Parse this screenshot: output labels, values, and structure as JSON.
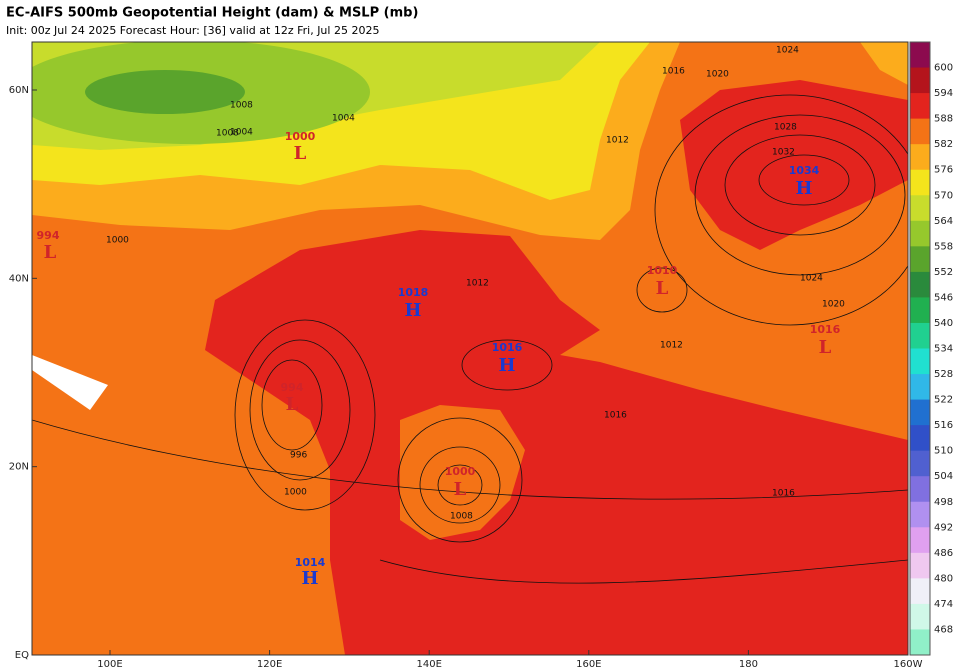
{
  "header": {
    "title": "EC-AIFS 500mb Geopotential Height (dam) & MSLP (mb)",
    "subtitle": "Init: 00z Jul 24 2025   Forecast Hour: [36]   valid at 12z Fri, Jul 25 2025"
  },
  "axes": {
    "lat_labels": [
      "60N",
      "40N",
      "20N",
      "EQ"
    ],
    "lon_labels": [
      "100E",
      "120E",
      "140E",
      "160E",
      "180",
      "160W"
    ]
  },
  "colorbar": {
    "levels": [
      600,
      594,
      588,
      582,
      576,
      570,
      564,
      558,
      552,
      546,
      540,
      534,
      528,
      522,
      516,
      510,
      504,
      498,
      492,
      486,
      480,
      474,
      468
    ],
    "colors": [
      "#8c0a4e",
      "#b4141c",
      "#e3241e",
      "#f47316",
      "#fcac1c",
      "#f4e41c",
      "#c8dc2c",
      "#96c82c",
      "#5aa42c",
      "#2a8a3c",
      "#20b050",
      "#20d090",
      "#20e0d0",
      "#30b8e8",
      "#2070d0",
      "#3050c8",
      "#5060d0",
      "#8070e0",
      "#b090f0",
      "#e0a0f0",
      "#f0c8f0",
      "#f0f0f8",
      "#d0f8e8",
      "#90f0c8"
    ]
  },
  "centers": [
    {
      "symbol": "L",
      "pressure": "1000"
    },
    {
      "symbol": "L",
      "pressure": "994"
    },
    {
      "symbol": "H",
      "pressure": "1018"
    },
    {
      "symbol": "H",
      "pressure": "1016"
    },
    {
      "symbol": "L",
      "pressure": "1010"
    },
    {
      "symbol": "H",
      "pressure": "1034"
    },
    {
      "symbol": "L",
      "pressure": "1016"
    },
    {
      "symbol": "L",
      "pressure": "994"
    },
    {
      "symbol": "L",
      "pressure": "1000"
    },
    {
      "symbol": "H",
      "pressure": "1014"
    }
  ],
  "contour_labels": [
    "1004",
    "1008",
    "1012",
    "1016",
    "1020",
    "1024",
    "1028",
    "1032",
    "996",
    "1000",
    "1012",
    "1016",
    "1008",
    "1012",
    "1016",
    "1024",
    "1020",
    "1008",
    "1004",
    "1000"
  ]
}
